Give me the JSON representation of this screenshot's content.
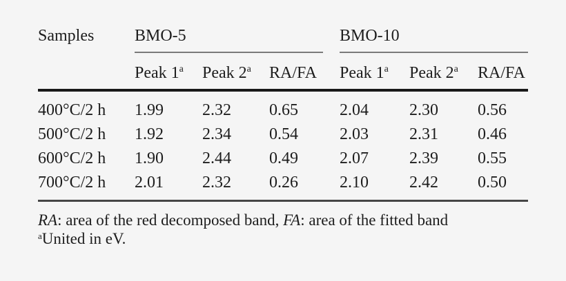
{
  "page": {
    "background_color": "#f5f5f5",
    "text_color": "#1d1d1d",
    "rule_colors": {
      "group_spanner": "#7a7a7a",
      "heavy_rule": "#191919",
      "footer_rule": "#454545"
    }
  },
  "table": {
    "corner_label": "Samples",
    "superscript_marker": "a",
    "groups": [
      {
        "label": "BMO-5",
        "columns": [
          "Peak 1",
          "Peak 2",
          "RA/FA"
        ]
      },
      {
        "label": "BMO-10",
        "columns": [
          "Peak 1",
          "Peak 2",
          "RA/FA"
        ]
      }
    ],
    "rows": [
      {
        "label": "400°C/2 h",
        "values": [
          "1.99",
          "2.32",
          "0.65",
          "2.04",
          "2.30",
          "0.56"
        ]
      },
      {
        "label": "500°C/2 h",
        "values": [
          "1.92",
          "2.34",
          "0.54",
          "2.03",
          "2.31",
          "0.46"
        ]
      },
      {
        "label": "600°C/2 h",
        "values": [
          "1.90",
          "2.44",
          "0.49",
          "2.07",
          "2.39",
          "0.55"
        ]
      },
      {
        "label": "700°C/2 h",
        "values": [
          "2.01",
          "2.32",
          "0.26",
          "2.10",
          "2.42",
          "0.50"
        ]
      }
    ]
  },
  "footnotes": {
    "line1": [
      {
        "text": "RA"
      },
      {
        "text": ": area of the red decomposed band, "
      },
      {
        "text": "FA"
      },
      {
        "text": ": area of the fitted band"
      }
    ],
    "line2": {
      "sup": "a",
      "text": "United in eV."
    }
  }
}
